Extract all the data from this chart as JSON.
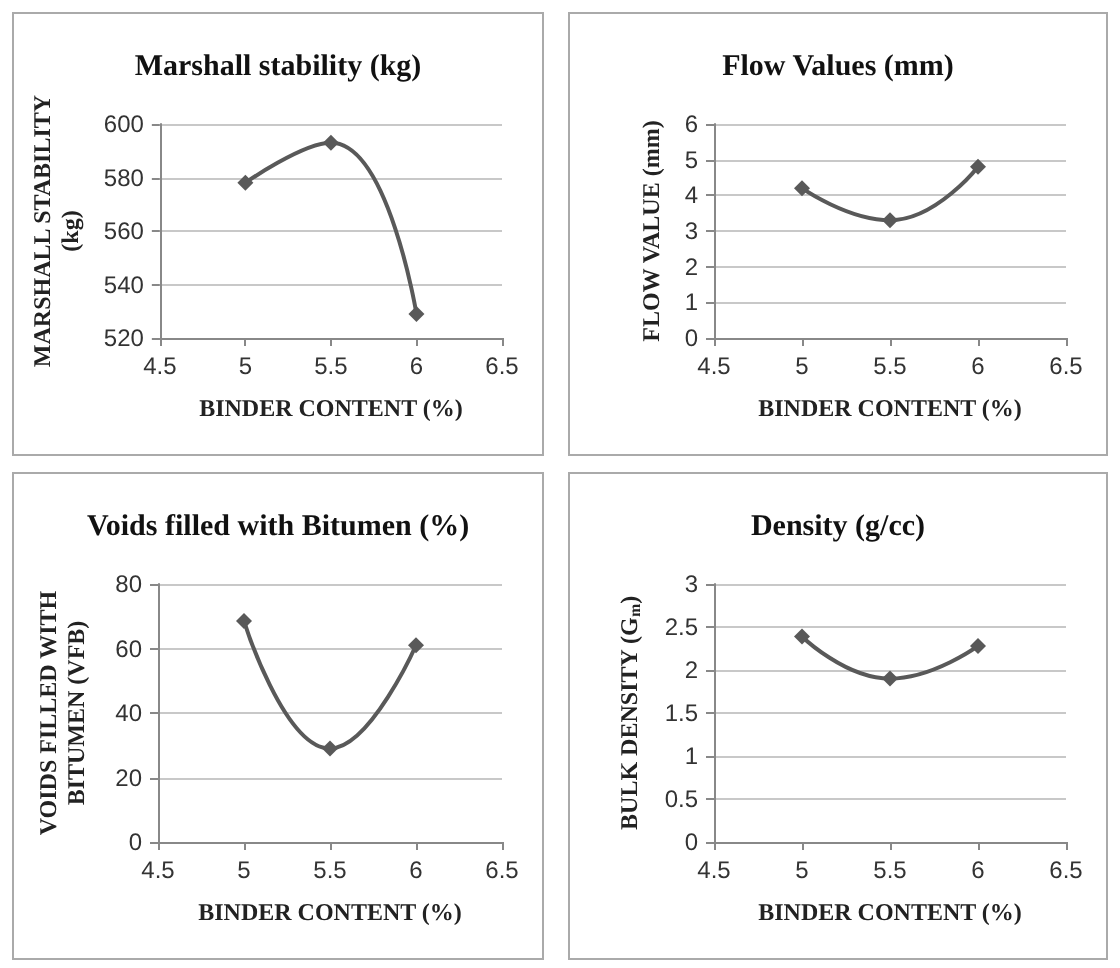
{
  "chart_data": [
    {
      "type": "line",
      "title": "Marshall stability (kg)",
      "xlabel": "BINDER CONTENT (%)",
      "ylabel": "MARSHALL STABILITY\n(kg)",
      "x": [
        5,
        5.5,
        6
      ],
      "series": [
        {
          "color": "#595959",
          "values": [
            578,
            593,
            529
          ]
        }
      ],
      "xlim": [
        4.5,
        6.5
      ],
      "xticks": [
        4.5,
        5,
        5.5,
        6,
        6.5
      ],
      "ylim": [
        520,
        600
      ],
      "yticks": [
        520,
        540,
        560,
        580,
        600
      ],
      "grid": "y",
      "marker": "diamond",
      "line_style": "solid"
    },
    {
      "type": "line",
      "title": "Flow Values (mm)",
      "xlabel": "BINDER CONTENT (%)",
      "ylabel": "FLOW VALUE (mm)",
      "x": [
        5,
        5.5,
        6
      ],
      "series": [
        {
          "color": "#595959",
          "values": [
            4.2,
            3.3,
            4.8
          ]
        }
      ],
      "xlim": [
        4.5,
        6.5
      ],
      "xticks": [
        4.5,
        5,
        5.5,
        6,
        6.5
      ],
      "ylim": [
        0,
        6
      ],
      "yticks": [
        0,
        1,
        2,
        3,
        4,
        5,
        6
      ],
      "grid": "y",
      "marker": "diamond",
      "line_style": "solid"
    },
    {
      "type": "line",
      "title": "Voids filled with Bitumen (%)",
      "xlabel": "BINDER CONTENT (%)",
      "ylabel": "VOIDS FILLED WITH\nBITUMEN (VFB)",
      "x": [
        5,
        5.5,
        6
      ],
      "series": [
        {
          "color": "#595959",
          "values": [
            68.5,
            29,
            61
          ]
        }
      ],
      "xlim": [
        4.5,
        6.5
      ],
      "xticks": [
        4.5,
        5,
        5.5,
        6,
        6.5
      ],
      "ylim": [
        0,
        80
      ],
      "yticks": [
        0,
        20,
        40,
        60,
        80
      ],
      "grid": "y",
      "marker": "diamond",
      "line_style": "solid"
    },
    {
      "type": "line",
      "title": "Density (g/cc)",
      "xlabel": "BINDER CONTENT (%)",
      "ylabel": "BULK DENSITY (G$_{m}$)",
      "x": [
        5,
        5.5,
        6
      ],
      "series": [
        {
          "color": "#595959",
          "values": [
            2.39,
            1.9,
            2.28
          ]
        }
      ],
      "xlim": [
        4.5,
        6.5
      ],
      "xticks": [
        4.5,
        5,
        5.5,
        6,
        6.5
      ],
      "ylim": [
        0,
        3
      ],
      "yticks": [
        0,
        0.5,
        1,
        1.5,
        2,
        2.5,
        3
      ],
      "grid": "y",
      "marker": "diamond",
      "line_style": "solid"
    }
  ]
}
